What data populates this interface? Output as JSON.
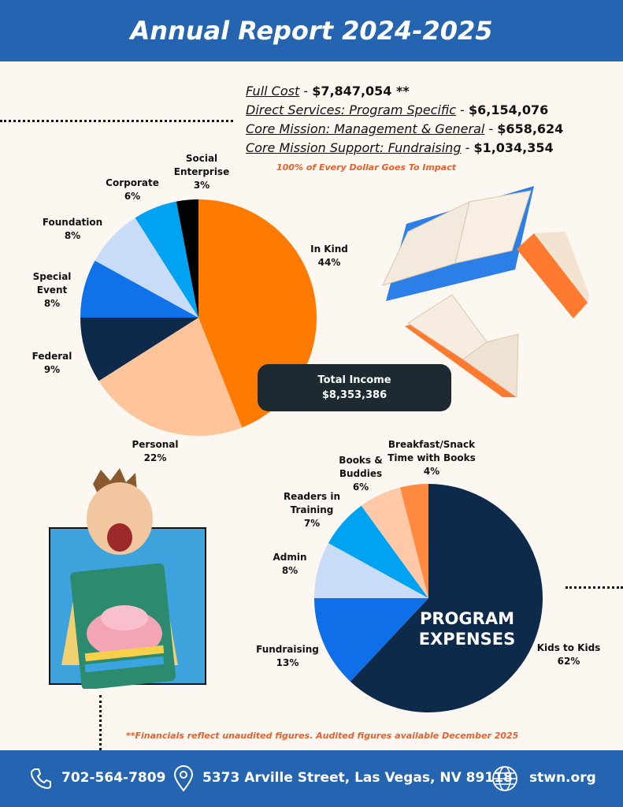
{
  "header": {
    "title": "Annual Report 2024-2025"
  },
  "costs": [
    {
      "label": "Full Cost",
      "sep": " - ",
      "value": "$7,847,054 **"
    },
    {
      "label": "Direct Services: Program Specific",
      "sep": " - ",
      "value": "$6,154,076"
    },
    {
      "label": "Core Mission: Management & General",
      "sep": " - ",
      "value": "$658,624"
    },
    {
      "label": "Core Mission Support: Fundraising",
      "sep": " - ",
      "value": "$1,034,354"
    }
  ],
  "impact_note": "100% of Every Dollar Goes To Impact",
  "total_income": {
    "label": "Total Income",
    "value": "$8,353,386"
  },
  "expenses_center": {
    "line1": "PROGRAM",
    "line2": "EXPENSES"
  },
  "footnote": "**Financials reflect unaudited figures. Audited figures available December 2025",
  "footer": {
    "phone": "702-564-7809",
    "address": "5373 Arville Street, Las Vegas, NV 89118",
    "website": "stwn.org"
  },
  "icons": [
    "phone-icon",
    "location-pin-icon",
    "globe-icon"
  ],
  "chart_data": [
    {
      "type": "pie",
      "title": "",
      "categories": [
        "In Kind",
        "Personal",
        "Federal",
        "Special Event",
        "Foundation",
        "Corporate",
        "Social Enterprise"
      ],
      "label_lines": [
        [
          "In Kind"
        ],
        [
          "Personal"
        ],
        [
          "Federal"
        ],
        [
          "Special",
          "Event"
        ],
        [
          "Foundation"
        ],
        [
          "Corporate"
        ],
        [
          "Social",
          "Enterprise"
        ]
      ],
      "values": [
        44,
        22,
        9,
        8,
        8,
        6,
        3
      ],
      "value_labels": [
        "44%",
        "22%",
        "9%",
        "8%",
        "8%",
        "6%",
        "3%"
      ],
      "colors": [
        "#ff7a00",
        "#ffc49a",
        "#0e2a4a",
        "#0f72e8",
        "#c9dcf7",
        "#00a3f2",
        "#000000"
      ]
    },
    {
      "type": "pie",
      "title": "PROGRAM EXPENSES",
      "categories": [
        "Kids to Kids",
        "Fundraising",
        "Admin",
        "Readers in Training",
        "Books & Buddies",
        "Breakfast/Snack Time with Books"
      ],
      "label_lines": [
        [
          "Kids to Kids"
        ],
        [
          "Fundraising"
        ],
        [
          "Admin"
        ],
        [
          "Readers in",
          "Training"
        ],
        [
          "Books &",
          "Buddies"
        ],
        [
          "Breakfast/Snack",
          "Time with Books"
        ]
      ],
      "values": [
        62,
        13,
        8,
        7,
        6,
        4
      ],
      "value_labels": [
        "62%",
        "13%",
        "8%",
        "7%",
        "6%",
        "4%"
      ],
      "colors": [
        "#0e2a4a",
        "#0f6fe8",
        "#c9dcf7",
        "#00a3f2",
        "#ffc8a6",
        "#ff8a40"
      ]
    }
  ]
}
